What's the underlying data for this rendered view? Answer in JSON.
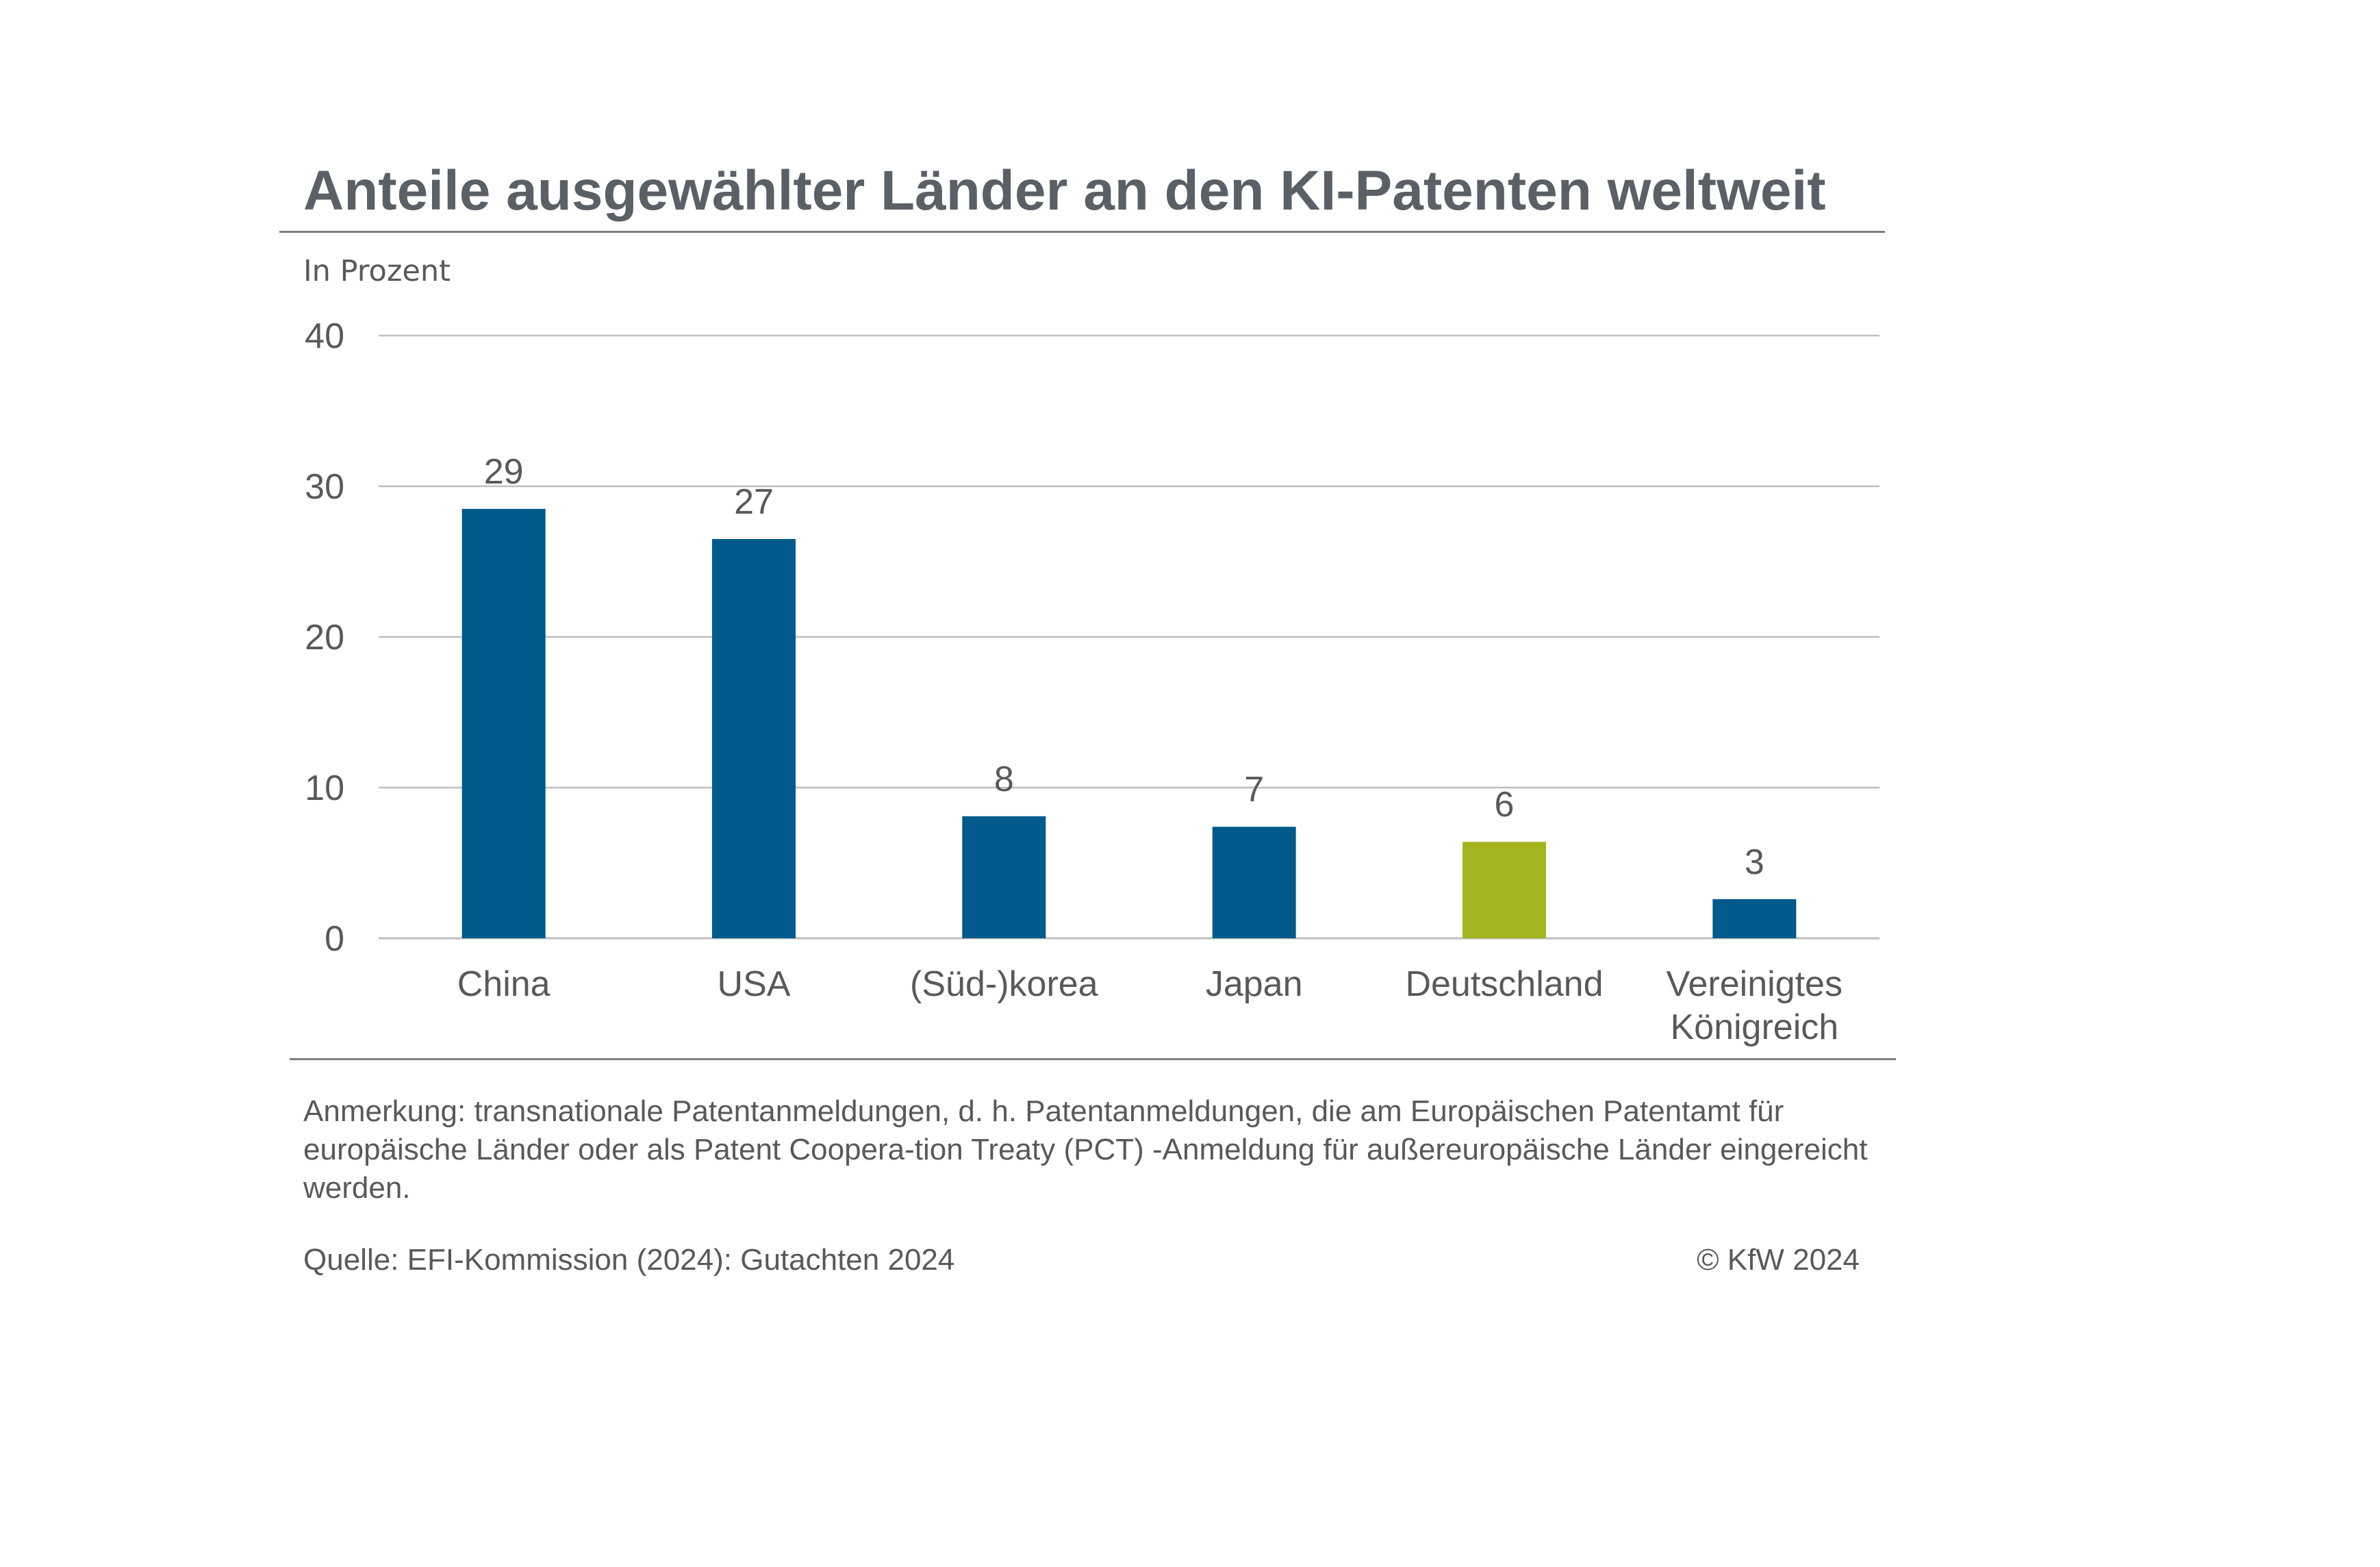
{
  "chart_data": {
    "type": "bar",
    "title": "Anteile ausgewählter Länder an den KI-Patenten weltweit",
    "subtitle": "In Prozent",
    "categories": [
      "China",
      "USA",
      "(Süd-)korea",
      "Japan",
      "Deutschland",
      "Vereinigtes Königreich"
    ],
    "category_lines": [
      [
        "China"
      ],
      [
        "USA"
      ],
      [
        "(Süd-)korea"
      ],
      [
        "Japan"
      ],
      [
        "Deutschland"
      ],
      [
        "Vereinigtes",
        "Königreich"
      ]
    ],
    "values": [
      28.5,
      26.5,
      8.1,
      7.4,
      6.4,
      2.6
    ],
    "data_labels": [
      "29",
      "27",
      "8",
      "7",
      "6",
      "3"
    ],
    "colors": [
      "#005a8c",
      "#005a8c",
      "#005a8c",
      "#005a8c",
      "#a4b51f",
      "#005a8c"
    ],
    "ylim": [
      0,
      40
    ],
    "yticks": [
      0,
      10,
      20,
      30,
      40
    ],
    "grid": true,
    "gridline_color": "#bfbfbf"
  },
  "note": "Anmerkung: transnationale Patentanmeldungen, d. h. Patentanmeldungen, die am Europäischen Patentamt für europäische Länder oder als Patent Coopera-tion Treaty (PCT) -Anmeldung für außereuropäische Länder eingereicht werden.",
  "source": "Quelle: EFI-Kommission (2024): Gutachten 2024",
  "copyright": "© KfW 2024"
}
